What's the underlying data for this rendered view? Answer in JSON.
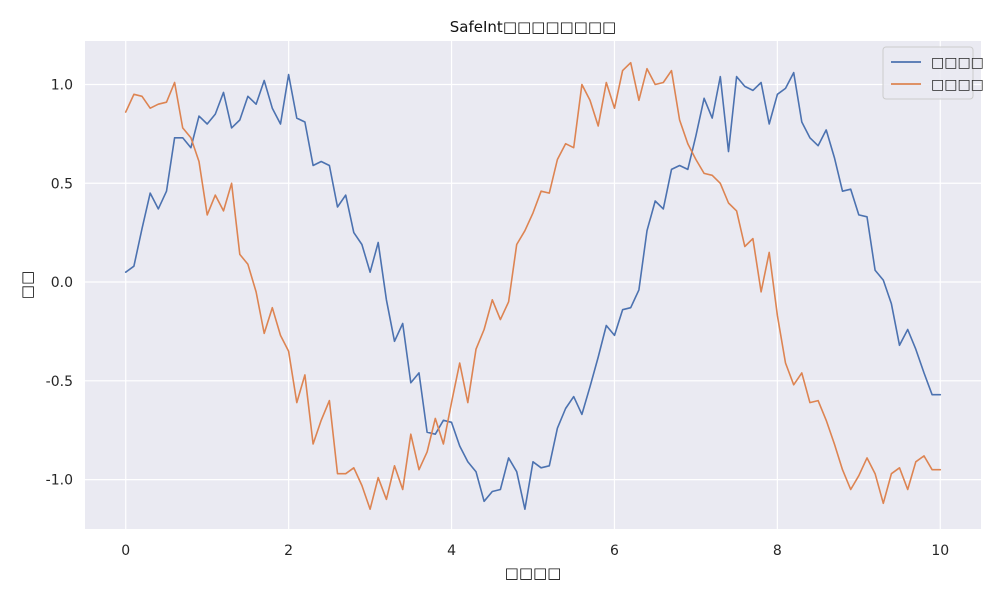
{
  "chart_data": {
    "type": "line",
    "title": "SafeInt□□□□□□□□",
    "xlabel": "□□□□",
    "ylabel": "□□",
    "xlim": [
      -0.5,
      10.5
    ],
    "ylim": [
      -1.25,
      1.22
    ],
    "x_ticks": [
      0,
      2,
      4,
      6,
      8,
      10
    ],
    "y_ticks": [
      -1.0,
      -0.5,
      0.0,
      0.5,
      1.0
    ],
    "x_tick_labels": [
      "0",
      "2",
      "4",
      "6",
      "8",
      "10"
    ],
    "y_tick_labels": [
      "-1.0",
      "-0.5",
      "0.0",
      "0.5",
      "1.0"
    ],
    "grid": true,
    "legend_position": "top-right",
    "background": "#eaeaf2",
    "series": [
      {
        "name": "□□□□",
        "color": "#4c72b0",
        "x": [
          0.0,
          0.1,
          0.2,
          0.3,
          0.4,
          0.5,
          0.6,
          0.7,
          0.8,
          0.9,
          1.0,
          1.1,
          1.2,
          1.3,
          1.4,
          1.5,
          1.6,
          1.7,
          1.8,
          1.9,
          2.0,
          2.1,
          2.2,
          2.3,
          2.4,
          2.5,
          2.6,
          2.7,
          2.8,
          2.9,
          3.0,
          3.1,
          3.2,
          3.3,
          3.4,
          3.5,
          3.6,
          3.7,
          3.8,
          3.9,
          4.0,
          4.1,
          4.2,
          4.3,
          4.4,
          4.5,
          4.6,
          4.7,
          4.8,
          4.9,
          5.0,
          5.1,
          5.2,
          5.3,
          5.4,
          5.5,
          5.6,
          5.7,
          5.8,
          5.9,
          6.0,
          6.1,
          6.2,
          6.3,
          6.4,
          6.5,
          6.6,
          6.7,
          6.8,
          6.9,
          7.0,
          7.1,
          7.2,
          7.3,
          7.4,
          7.5,
          7.6,
          7.7,
          7.8,
          7.9,
          8.0,
          8.1,
          8.2,
          8.3,
          8.4,
          8.5,
          8.6,
          8.7,
          8.8,
          8.9,
          9.0,
          9.1,
          9.2,
          9.3,
          9.4,
          9.5,
          9.6,
          9.7,
          9.8,
          9.9,
          10.0
        ],
        "y": [
          0.05,
          0.08,
          0.27,
          0.45,
          0.37,
          0.46,
          0.73,
          0.73,
          0.68,
          0.84,
          0.8,
          0.85,
          0.96,
          0.78,
          0.82,
          0.94,
          0.9,
          1.02,
          0.88,
          0.8,
          1.05,
          0.83,
          0.81,
          0.59,
          0.61,
          0.59,
          0.38,
          0.44,
          0.25,
          0.19,
          0.05,
          0.2,
          -0.09,
          -0.3,
          -0.21,
          -0.51,
          -0.46,
          -0.76,
          -0.77,
          -0.7,
          -0.71,
          -0.83,
          -0.91,
          -0.96,
          -1.11,
          -1.06,
          -1.05,
          -0.89,
          -0.96,
          -1.15,
          -0.91,
          -0.94,
          -0.93,
          -0.74,
          -0.64,
          -0.58,
          -0.67,
          -0.53,
          -0.38,
          -0.22,
          -0.27,
          -0.14,
          -0.13,
          -0.04,
          0.26,
          0.41,
          0.37,
          0.57,
          0.59,
          0.57,
          0.74,
          0.93,
          0.83,
          1.04,
          0.66,
          1.04,
          0.99,
          0.97,
          1.01,
          0.8,
          0.95,
          0.98,
          1.06,
          0.81,
          0.73,
          0.69,
          0.77,
          0.63,
          0.46,
          0.47,
          0.34,
          0.33,
          0.06,
          0.01,
          -0.11,
          -0.32,
          -0.24,
          -0.34,
          -0.46,
          -0.57,
          -0.57
        ]
      },
      {
        "name": "□□□□",
        "color": "#dd8452",
        "x": [
          0.0,
          0.1,
          0.2,
          0.3,
          0.4,
          0.5,
          0.6,
          0.7,
          0.8,
          0.9,
          1.0,
          1.1,
          1.2,
          1.3,
          1.4,
          1.5,
          1.6,
          1.7,
          1.8,
          1.9,
          2.0,
          2.1,
          2.2,
          2.3,
          2.4,
          2.5,
          2.6,
          2.7,
          2.8,
          2.9,
          3.0,
          3.1,
          3.2,
          3.3,
          3.4,
          3.5,
          3.6,
          3.7,
          3.8,
          3.9,
          4.0,
          4.1,
          4.2,
          4.3,
          4.4,
          4.5,
          4.6,
          4.7,
          4.8,
          4.9,
          5.0,
          5.1,
          5.2,
          5.3,
          5.4,
          5.5,
          5.6,
          5.7,
          5.8,
          5.9,
          6.0,
          6.1,
          6.2,
          6.3,
          6.4,
          6.5,
          6.6,
          6.7,
          6.8,
          6.9,
          7.0,
          7.1,
          7.2,
          7.3,
          7.4,
          7.5,
          7.6,
          7.7,
          7.8,
          7.9,
          8.0,
          8.1,
          8.2,
          8.3,
          8.4,
          8.5,
          8.6,
          8.7,
          8.8,
          8.9,
          9.0,
          9.1,
          9.2,
          9.3,
          9.4,
          9.5,
          9.6,
          9.7,
          9.8,
          9.9,
          10.0
        ],
        "y": [
          0.86,
          0.95,
          0.94,
          0.88,
          0.9,
          0.91,
          1.01,
          0.78,
          0.73,
          0.61,
          0.34,
          0.44,
          0.36,
          0.5,
          0.14,
          0.09,
          -0.05,
          -0.26,
          -0.13,
          -0.27,
          -0.35,
          -0.61,
          -0.47,
          -0.82,
          -0.7,
          -0.6,
          -0.97,
          -0.97,
          -0.94,
          -1.03,
          -1.15,
          -0.99,
          -1.1,
          -0.93,
          -1.05,
          -0.77,
          -0.95,
          -0.86,
          -0.69,
          -0.82,
          -0.61,
          -0.41,
          -0.61,
          -0.34,
          -0.24,
          -0.09,
          -0.19,
          -0.1,
          0.19,
          0.26,
          0.35,
          0.46,
          0.45,
          0.62,
          0.7,
          0.68,
          1.0,
          0.92,
          0.79,
          1.01,
          0.88,
          1.07,
          1.11,
          0.92,
          1.08,
          1.0,
          1.01,
          1.07,
          0.82,
          0.7,
          0.62,
          0.55,
          0.54,
          0.5,
          0.4,
          0.36,
          0.18,
          0.22,
          -0.05,
          0.15,
          -0.17,
          -0.41,
          -0.52,
          -0.46,
          -0.61,
          -0.6,
          -0.7,
          -0.82,
          -0.95,
          -1.05,
          -0.98,
          -0.89,
          -0.97,
          -1.12,
          -0.97,
          -0.94,
          -1.05,
          -0.91,
          -0.88,
          -0.95,
          -0.95
        ]
      }
    ]
  }
}
